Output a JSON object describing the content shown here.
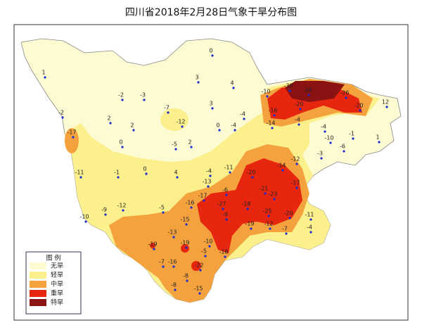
{
  "title": "四川省2018年2月28日气象干旱分布图",
  "legend": {
    "title": "图  例",
    "items": [
      {
        "label": "无旱",
        "color": "#fdfbd2"
      },
      {
        "label": "轻旱",
        "color": "#fbf08c"
      },
      {
        "label": "中旱",
        "color": "#f4a23e"
      },
      {
        "label": "重旱",
        "color": "#e6260f"
      },
      {
        "label": "特旱",
        "color": "#8a1212"
      }
    ]
  },
  "stations": [
    1,
    0,
    3,
    4,
    -2,
    -3,
    -2,
    2,
    2,
    -7,
    3,
    -12,
    -17,
    0,
    -5,
    2,
    0,
    -4,
    -4,
    -10,
    -30,
    -24,
    -26,
    -16,
    -20,
    -20,
    12,
    -14,
    -4,
    -4,
    -1,
    1,
    -10,
    -3,
    -6,
    -12,
    -14,
    -20,
    -11,
    -4,
    -11,
    -1,
    0,
    4,
    -13,
    -6,
    -21,
    -23,
    -17,
    -17,
    -16,
    -27,
    -18,
    -25,
    -20,
    -11,
    -10,
    -9,
    -12,
    -5,
    -9,
    -19,
    -12,
    -7,
    -4,
    -15,
    -19,
    -19,
    -13,
    -10,
    -5,
    -18,
    -16,
    -22,
    -7,
    -8,
    -8,
    -15
  ]
}
